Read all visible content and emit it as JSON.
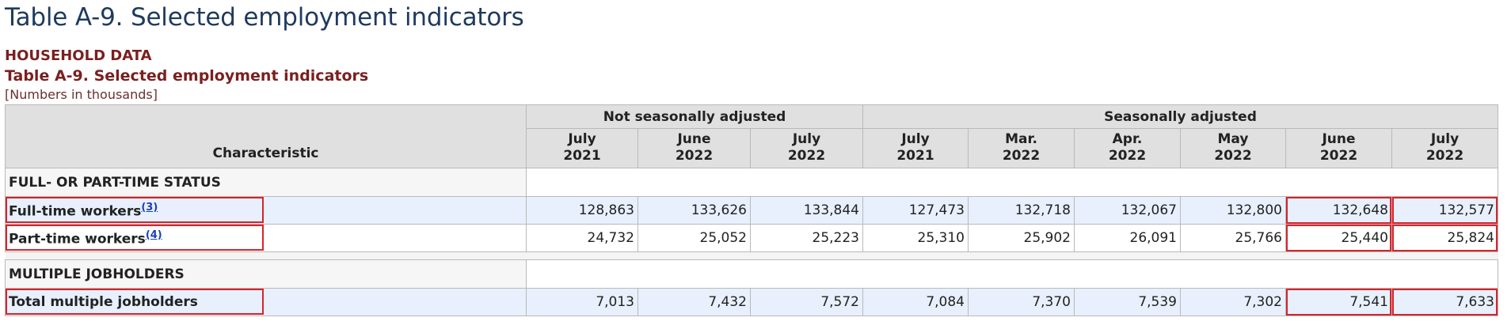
{
  "page": {
    "title": "Table A-9. Selected employment indicators",
    "section_label": "HOUSEHOLD DATA",
    "table_title": "Table A-9. Selected employment indicators",
    "note": "[Numbers in thousands]"
  },
  "table": {
    "characteristic_header": "Characteristic",
    "group_nsa": "Not seasonally adjusted",
    "group_sa": "Seasonally adjusted",
    "columns": [
      {
        "month": "July",
        "year": "2021"
      },
      {
        "month": "June",
        "year": "2022"
      },
      {
        "month": "July",
        "year": "2022"
      },
      {
        "month": "July",
        "year": "2021"
      },
      {
        "month": "Mar.",
        "year": "2022"
      },
      {
        "month": "Apr.",
        "year": "2022"
      },
      {
        "month": "May",
        "year": "2022"
      },
      {
        "month": "June",
        "year": "2022"
      },
      {
        "month": "July",
        "year": "2022"
      }
    ],
    "sections": [
      {
        "title": "FULL- OR PART-TIME STATUS",
        "rows": [
          {
            "label": "Full-time workers",
            "footnote": "(3)",
            "values": [
              "128,863",
              "133,626",
              "133,844",
              "127,473",
              "132,718",
              "132,067",
              "132,800",
              "132,648",
              "132,577"
            ]
          },
          {
            "label": "Part-time workers",
            "footnote": "(4)",
            "values": [
              "24,732",
              "25,052",
              "25,223",
              "25,310",
              "25,902",
              "26,091",
              "25,766",
              "25,440",
              "25,824"
            ]
          }
        ]
      },
      {
        "title": "MULTIPLE JOBHOLDERS",
        "rows": [
          {
            "label": "Total multiple jobholders",
            "footnote": "",
            "values": [
              "7,013",
              "7,432",
              "7,572",
              "7,084",
              "7,370",
              "7,539",
              "7,302",
              "7,541",
              "7,633"
            ]
          }
        ]
      }
    ]
  }
}
